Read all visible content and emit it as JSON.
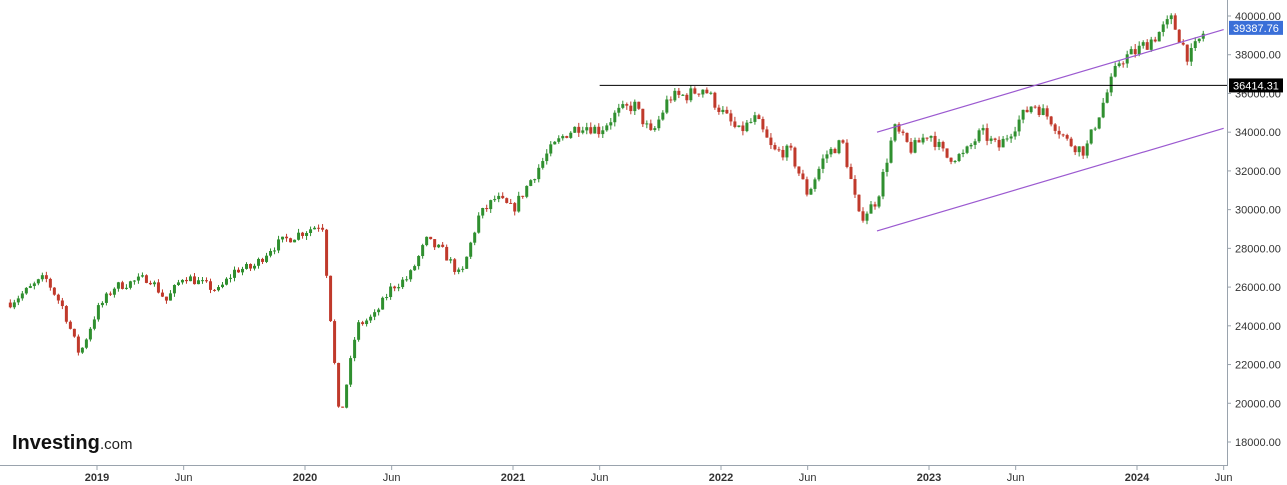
{
  "logo": {
    "name": "Investing",
    "suffix": ".com"
  },
  "colors": {
    "up": "#2f8f2f",
    "down": "#c0392b",
    "channel": "#9b59d0",
    "resistance": "#000000",
    "last_price_badge": "#3a6fd8",
    "resistance_badge": "#000000",
    "axis": "#9aa3ad"
  },
  "chart_data": {
    "type": "candlestick",
    "timeframe": "weekly",
    "title": "",
    "xlabel": "",
    "ylabel": "",
    "ylim": [
      17000,
      40800
    ],
    "x_ticks": [
      "2019",
      "Jun",
      "2020",
      "Jun",
      "2021",
      "Jun",
      "2022",
      "Jun",
      "2023",
      "Jun",
      "2024",
      "Jun"
    ],
    "x_tick_bold": [
      true,
      false,
      true,
      false,
      true,
      false,
      true,
      false,
      true,
      false,
      true,
      false
    ],
    "y_ticks": [
      18000,
      20000,
      22000,
      24000,
      26000,
      28000,
      30000,
      32000,
      34000,
      36000,
      38000,
      40000
    ],
    "y_tick_labels": [
      "18000.00",
      "20000.00",
      "22000.00",
      "24000.00",
      "26000.00",
      "28000.00",
      "30000.00",
      "32000.00",
      "34000.00",
      "36000.00",
      "38000.00",
      "40000.00"
    ],
    "last_price": {
      "value": 39387.76,
      "label": "39387.76"
    },
    "resistance": {
      "value": 36414.31,
      "label": "36414.31",
      "start": "2021-06"
    },
    "channel": {
      "upper": {
        "from": {
          "date": "2022-10",
          "value": 34000
        },
        "to": {
          "date": "2024-06",
          "value": 39300
        }
      },
      "lower": {
        "from": {
          "date": "2022-10",
          "value": 28900
        },
        "to": {
          "date": "2024-06",
          "value": 34200
        }
      }
    },
    "close_path": [
      [
        "2018-08",
        25200
      ],
      [
        "2018-10",
        26500
      ],
      [
        "2018-11",
        25000
      ],
      [
        "2018-12",
        22500
      ],
      [
        "2019-01",
        24800
      ],
      [
        "2019-02",
        26000
      ],
      [
        "2019-04",
        26500
      ],
      [
        "2019-05",
        25300
      ],
      [
        "2019-06",
        26600
      ],
      [
        "2019-08",
        25800
      ],
      [
        "2019-09",
        26900
      ],
      [
        "2019-10",
        27000
      ],
      [
        "2019-11",
        28000
      ],
      [
        "2019-12",
        28500
      ],
      [
        "2020-02",
        29300
      ],
      [
        "2020-03",
        19000
      ],
      [
        "2020-04",
        24000
      ],
      [
        "2020-05",
        24500
      ],
      [
        "2020-06",
        26000
      ],
      [
        "2020-07",
        26500
      ],
      [
        "2020-08",
        28400
      ],
      [
        "2020-09",
        27800
      ],
      [
        "2020-10",
        26500
      ],
      [
        "2020-11",
        29600
      ],
      [
        "2020-12",
        30600
      ],
      [
        "2021-01",
        30000
      ],
      [
        "2021-02",
        31500
      ],
      [
        "2021-03",
        32900
      ],
      [
        "2021-04",
        33900
      ],
      [
        "2021-05",
        34400
      ],
      [
        "2021-06",
        34100
      ],
      [
        "2021-07",
        35000
      ],
      [
        "2021-08",
        35400
      ],
      [
        "2021-09",
        33800
      ],
      [
        "2021-10",
        35800
      ],
      [
        "2021-11",
        35900
      ],
      [
        "2021-12",
        36300
      ],
      [
        "2022-01",
        35100
      ],
      [
        "2022-02",
        34000
      ],
      [
        "2022-03",
        34700
      ],
      [
        "2022-04",
        33000
      ],
      [
        "2022-05",
        33000
      ],
      [
        "2022-06",
        30800
      ],
      [
        "2022-07",
        32800
      ],
      [
        "2022-08",
        33500
      ],
      [
        "2022-09",
        29500
      ],
      [
        "2022-10",
        30500
      ],
      [
        "2022-11",
        34200
      ],
      [
        "2022-12",
        33100
      ],
      [
        "2023-01",
        34000
      ],
      [
        "2023-02",
        32700
      ],
      [
        "2023-03",
        32800
      ],
      [
        "2023-04",
        34000
      ],
      [
        "2023-05",
        33200
      ],
      [
        "2023-06",
        34400
      ],
      [
        "2023-07",
        35500
      ],
      [
        "2023-08",
        34700
      ],
      [
        "2023-09",
        33500
      ],
      [
        "2023-10",
        33000
      ],
      [
        "2023-11",
        35400
      ],
      [
        "2023-12",
        37700
      ],
      [
        "2024-01",
        38200
      ],
      [
        "2024-02",
        38900
      ],
      [
        "2024-03",
        39800
      ],
      [
        "2024-04",
        37800
      ],
      [
        "2024-05",
        39387.76
      ]
    ]
  }
}
